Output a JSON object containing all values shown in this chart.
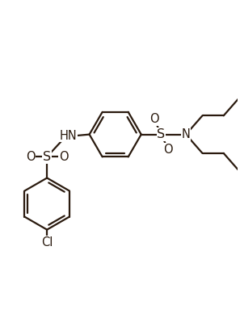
{
  "bg_color": "#ffffff",
  "line_color": "#2a1a0e",
  "line_width": 1.6,
  "font_size": 10.5,
  "figsize": [
    2.97,
    4.09
  ],
  "dpi": 100,
  "xlim": [
    0,
    10
  ],
  "ylim": [
    0,
    13.8
  ]
}
